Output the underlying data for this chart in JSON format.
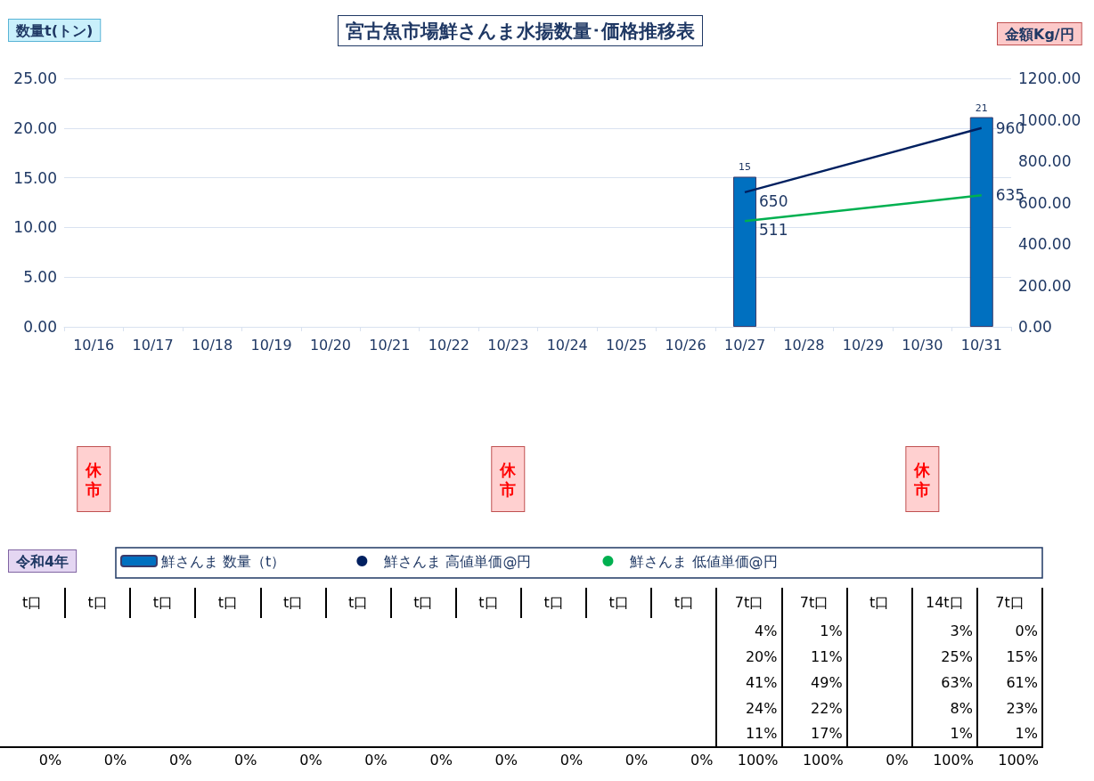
{
  "chart_data": [
    {
      "type": "bar",
      "title": "宮古魚市場鮮さんま水揚数量･価格推移表",
      "ylabel": "数量t(トン)",
      "y2label": "金額Kg/円",
      "categories": [
        "10/16",
        "10/17",
        "10/18",
        "10/19",
        "10/20",
        "10/21",
        "10/22",
        "10/23",
        "10/24",
        "10/25",
        "10/26",
        "10/27",
        "10/28",
        "10/29",
        "10/30",
        "10/31"
      ],
      "series": [
        {
          "name": "鮮さんま 数量（t）",
          "type": "bar",
          "color": "#0070c0",
          "values": [
            null,
            null,
            null,
            null,
            null,
            null,
            null,
            null,
            null,
            null,
            null,
            15.1,
            null,
            null,
            null,
            21.1
          ],
          "value_labels": [
            null,
            null,
            null,
            null,
            null,
            null,
            null,
            null,
            null,
            null,
            null,
            "15",
            null,
            null,
            null,
            "21"
          ]
        },
        {
          "name": "鮮さんま 高値単価@円",
          "type": "line",
          "axis": "y2",
          "color": "#002060",
          "values": [
            null,
            null,
            null,
            null,
            null,
            null,
            null,
            null,
            null,
            null,
            null,
            650,
            null,
            null,
            null,
            960
          ],
          "value_labels": [
            null,
            null,
            null,
            null,
            null,
            null,
            null,
            null,
            null,
            null,
            null,
            "650",
            null,
            null,
            null,
            "960"
          ]
        },
        {
          "name": "鮮さんま 低値単価@円",
          "type": "line",
          "axis": "y2",
          "color": "#00b050",
          "values": [
            null,
            null,
            null,
            null,
            null,
            null,
            null,
            null,
            null,
            null,
            null,
            511,
            null,
            null,
            null,
            635
          ],
          "value_labels": [
            null,
            null,
            null,
            null,
            null,
            null,
            null,
            null,
            null,
            null,
            null,
            "511",
            null,
            null,
            null,
            "635"
          ]
        }
      ],
      "ylim": [
        0,
        25
      ],
      "yticks": [
        {
          "value": 0,
          "label": "0.00"
        },
        {
          "value": 5,
          "label": "5.00"
        },
        {
          "value": 10,
          "label": "10.00"
        },
        {
          "value": 15,
          "label": "15.00"
        },
        {
          "value": 20,
          "label": "20.00"
        },
        {
          "value": 25,
          "label": "25.00"
        }
      ],
      "y2lim": [
        0,
        1200
      ],
      "y2ticks": [
        {
          "value": 0,
          "label": "0.00"
        },
        {
          "value": 200,
          "label": "200.00"
        },
        {
          "value": 400,
          "label": "400.00"
        },
        {
          "value": 600,
          "label": "600.00"
        },
        {
          "value": 800,
          "label": "800.00"
        },
        {
          "value": 1000,
          "label": "1000.00"
        },
        {
          "value": 1200,
          "label": "1200.00"
        }
      ],
      "grid": "y",
      "legend": "bottom",
      "marker": "none",
      "annotations": [
        "令和4年",
        "休市",
        "休市",
        "休市"
      ]
    },
    {
      "type": "other",
      "cell_labels": [
        [
          "t口",
          "t口",
          "t口",
          "t口",
          "t口",
          "t口",
          "t口",
          "t口",
          "t口",
          "t口",
          "t口",
          "7t口",
          "7t口",
          "t口",
          "14t口",
          "7t口"
        ],
        [
          null,
          null,
          null,
          null,
          null,
          null,
          null,
          null,
          null,
          null,
          null,
          "4%",
          "1%",
          null,
          "3%",
          "0%"
        ],
        [
          null,
          null,
          null,
          null,
          null,
          null,
          null,
          null,
          null,
          null,
          null,
          "20%",
          "11%",
          null,
          "25%",
          "15%"
        ],
        [
          null,
          null,
          null,
          null,
          null,
          null,
          null,
          null,
          null,
          null,
          null,
          "41%",
          "49%",
          null,
          "63%",
          "61%"
        ],
        [
          null,
          null,
          null,
          null,
          null,
          null,
          null,
          null,
          null,
          null,
          null,
          "24%",
          "22%",
          null,
          "8%",
          "23%"
        ],
        [
          null,
          null,
          null,
          null,
          null,
          null,
          null,
          null,
          null,
          null,
          null,
          "11%",
          "17%",
          null,
          "1%",
          "1%"
        ],
        [
          "0%",
          "0%",
          "0%",
          "0%",
          "0%",
          "0%",
          "0%",
          "0%",
          "0%",
          "0%",
          "0%",
          "100%",
          "100%",
          "0%",
          "100%",
          "100%"
        ]
      ]
    }
  ]
}
